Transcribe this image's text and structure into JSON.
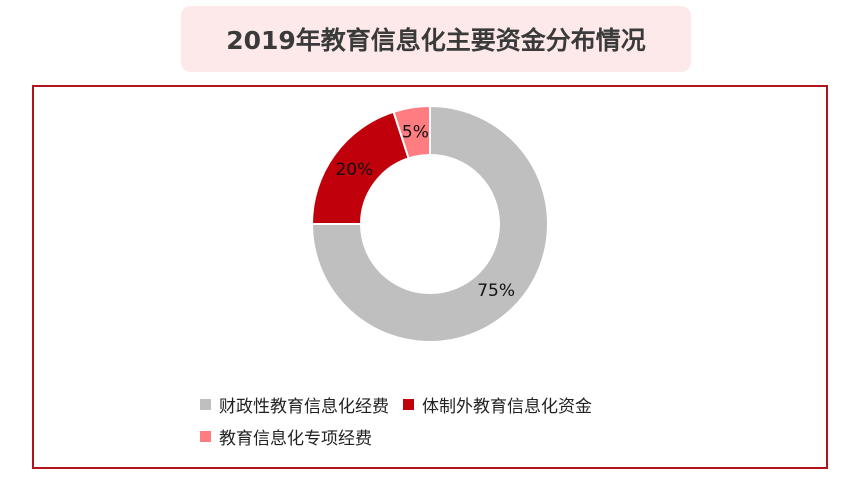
{
  "chart_data": {
    "type": "pie",
    "style": "donut",
    "title": "2019年教育信息化主要资金分布情况",
    "slices": [
      {
        "name": "财政性教育信息化经费",
        "value": 75,
        "label": "75%",
        "color": "#bfbfbf"
      },
      {
        "name": "体制外教育信息化资金",
        "value": 20,
        "label": "20%",
        "color": "#c0000b"
      },
      {
        "name": "教育信息化专项经费",
        "value": 5,
        "label": "5%",
        "color": "#ff7c80"
      }
    ],
    "legend_position": "bottom"
  }
}
